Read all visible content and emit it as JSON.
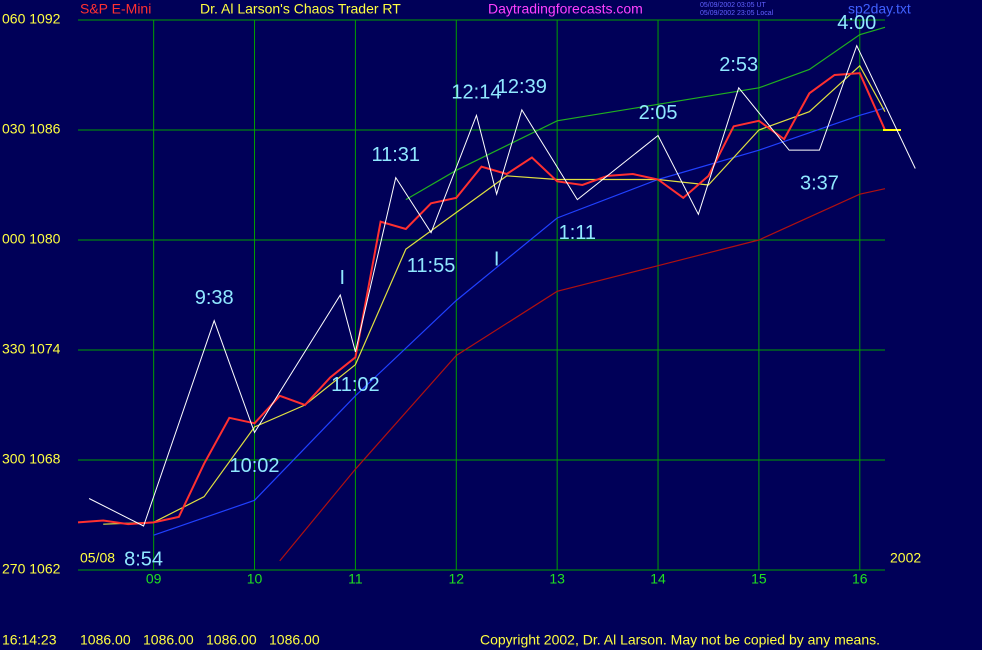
{
  "chart_data": {
    "type": "line",
    "symbol": "S&P E-Mini",
    "title": "Dr. Al Larson's Chaos Trader RT",
    "website": "Daytradingforecasts.com",
    "timestamp_lines": [
      "05/09/2002 03:05 UT",
      "05/09/2002 23:05 Local"
    ],
    "file_name": "sp2day.txt",
    "date_label": "05/08",
    "year_label": "2002",
    "status_time": "16:14:23",
    "status_prices": [
      "1086.00",
      "1086.00",
      "1086.00",
      "1086.00"
    ],
    "copyright": "Copyright 2002, Dr. Al Larson. May not be copied by any means.",
    "xlim": [
      8.25,
      16.25
    ],
    "xticks": [
      {
        "value": 9,
        "label": "09"
      },
      10,
      11,
      12,
      13,
      14,
      15,
      16
    ],
    "ylim": [
      1062,
      1092
    ],
    "yticks": [
      {
        "value": 1092,
        "label": "060 1092"
      },
      {
        "value": 1086,
        "label": "030 1086"
      },
      {
        "value": 1080,
        "label": "000 1080"
      },
      {
        "value": 1074,
        "label": "330 1074"
      },
      {
        "value": 1068,
        "label": "300 1068"
      },
      {
        "value": 1062,
        "label": "270 1062"
      }
    ],
    "grid": true,
    "grid_color": "#00a000",
    "last_price": 1086,
    "last_price_color": "#ffff00",
    "series": [
      {
        "color": "#ff3030",
        "x": [
          8.25,
          8.5,
          8.75,
          9,
          9.25,
          9.5,
          9.75,
          10,
          10.25,
          10.5,
          10.75,
          11,
          11.25,
          11.5,
          11.75,
          12,
          12.25,
          12.5,
          12.75,
          13,
          13.25,
          13.5,
          13.75,
          14,
          14.25,
          14.5,
          14.75,
          15,
          15.25,
          15.5,
          15.75,
          16,
          16.25
        ],
        "values": [
          1064.6,
          1064.7,
          1064.5,
          1064.6,
          1064.9,
          1067.8,
          1070.3,
          1070,
          1071.5,
          1071,
          1072.5,
          1073.6,
          1081,
          1080.6,
          1082,
          1082.3,
          1084,
          1083.6,
          1084.5,
          1083.2,
          1083,
          1083.5,
          1083.6,
          1083.3,
          1082.3,
          1083.5,
          1086.2,
          1086.5,
          1085.5,
          1088,
          1089,
          1089.1,
          1086
        ]
      },
      {
        "color": "#e0e040",
        "x": [
          8.5,
          9,
          9.5,
          10,
          10.5,
          11,
          11.5,
          12,
          12.5,
          13,
          13.5,
          14,
          14.5,
          15,
          15.5,
          16,
          16.25
        ],
        "values": [
          1064.5,
          1064.6,
          1066,
          1069.8,
          1071,
          1073.2,
          1079.5,
          1081.5,
          1083.5,
          1083.3,
          1083.3,
          1083.3,
          1083,
          1086,
          1087,
          1089.5,
          1087
        ]
      },
      {
        "color": "#20b020",
        "x": [
          11.5,
          12,
          13,
          14,
          15,
          15.5,
          16,
          16.25
        ],
        "values": [
          1082.2,
          1083.8,
          1086.5,
          1087.4,
          1088.3,
          1089.3,
          1091.2,
          1091.6
        ]
      },
      {
        "color": "#2040ff",
        "x": [
          9,
          10,
          11,
          12,
          13,
          14,
          15,
          16,
          16.25
        ],
        "values": [
          1063.9,
          1065.8,
          1071.5,
          1076.7,
          1081.2,
          1083.3,
          1084.9,
          1086.8,
          1087.2
        ]
      },
      {
        "color": "#b01010",
        "x": [
          10.25,
          11,
          12,
          13,
          14,
          15,
          16,
          16.25
        ],
        "values": [
          1062.5,
          1067.5,
          1073.7,
          1077.2,
          1078.6,
          1080,
          1082.5,
          1082.8
        ]
      }
    ],
    "swing_color": "#ffffff",
    "swings": {
      "x": [
        8.36,
        8.9,
        9.6,
        10.0,
        10.85,
        11.0,
        11.4,
        11.75,
        12.2,
        12.4,
        12.65,
        13.2,
        14.0,
        14.4,
        14.8,
        15.3,
        15.6,
        15.97,
        16.55
      ],
      "values": [
        1065.9,
        1064.4,
        1075.6,
        1069.5,
        1077.0,
        1073.9,
        1083.4,
        1080.4,
        1086.8,
        1082.5,
        1087.1,
        1082.2,
        1085.7,
        1081.4,
        1088.3,
        1084.9,
        1084.9,
        1090.6,
        1083.9
      ],
      "labels": [
        null,
        "8:54",
        "9:38",
        "10:02",
        null,
        "11:02",
        "11:31",
        "11:55",
        "12:14",
        null,
        "12:39",
        "1:11",
        "2:05",
        null,
        "2:53",
        null,
        "3:37",
        "4:00",
        null
      ]
    },
    "markers": [
      {
        "label": "I",
        "x": 10.87,
        "y": 1077.9
      },
      {
        "label": "I",
        "x": 12.4,
        "y": 1078.9
      }
    ]
  }
}
